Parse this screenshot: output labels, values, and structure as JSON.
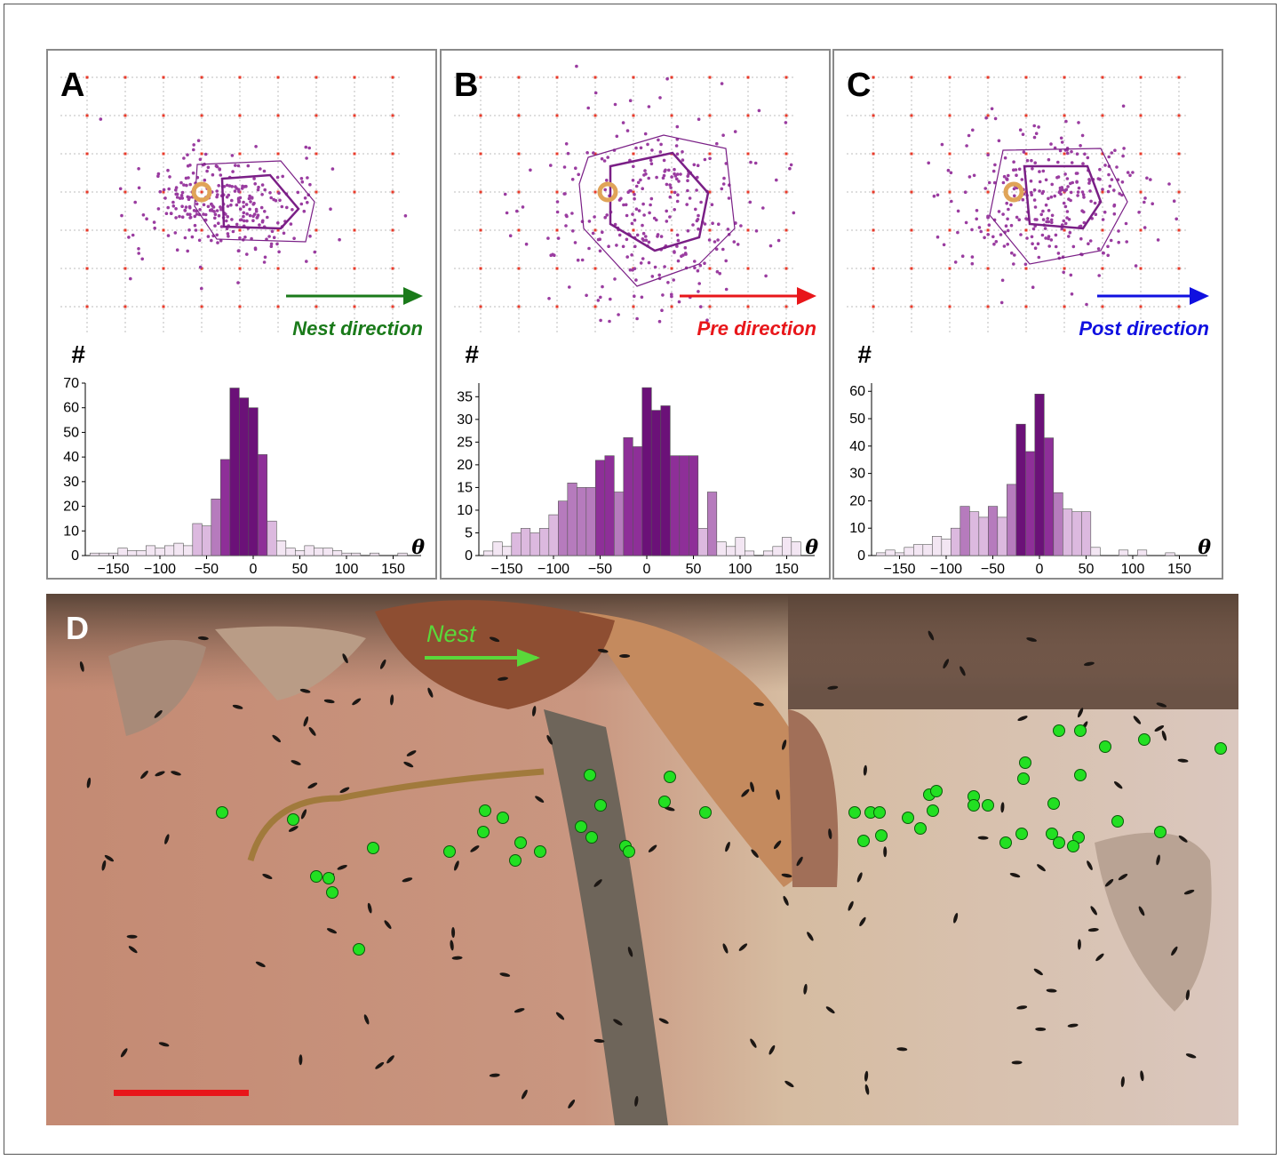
{
  "figure": {
    "panels": [
      {
        "letter": "A",
        "direction_label": "Nest direction",
        "direction_color": "#1a7a1a"
      },
      {
        "letter": "B",
        "direction_label": "Pre direction",
        "direction_color": "#e8161a"
      },
      {
        "letter": "C",
        "direction_label": "Post direction",
        "direction_color": "#1010e0"
      }
    ],
    "histogram_axis_symbol": "#",
    "theta_symbol": "θ",
    "photo": {
      "letter": "D",
      "nest_label": "Nest",
      "nest_color": "#5ad83a",
      "scale_bar_color": "#e8161a",
      "dot_color": "#22e022"
    }
  },
  "chart_data": [
    {
      "type": "bar",
      "panel": "A",
      "ylabel": "#",
      "xlabel": "θ",
      "xlim": [
        -180,
        180
      ],
      "ylim": [
        0,
        70
      ],
      "xticks": [
        -150,
        -100,
        -50,
        0,
        50,
        100,
        150
      ],
      "yticks": [
        0,
        10,
        20,
        30,
        40,
        50,
        60,
        70
      ],
      "bin_width": 10,
      "bin_starts": [
        -175,
        -165,
        -155,
        -145,
        -135,
        -125,
        -115,
        -105,
        -95,
        -85,
        -75,
        -65,
        -55,
        -45,
        -35,
        -25,
        -15,
        -5,
        5,
        15,
        25,
        35,
        45,
        55,
        65,
        75,
        85,
        95,
        105,
        115,
        125,
        135,
        145,
        155,
        165
      ],
      "values": [
        1,
        1,
        1,
        3,
        2,
        2,
        4,
        3,
        4,
        5,
        4,
        13,
        12,
        23,
        39,
        68,
        64,
        60,
        41,
        14,
        6,
        3,
        2,
        4,
        3,
        3,
        2,
        1,
        1,
        0,
        1,
        0,
        0,
        1,
        0
      ]
    },
    {
      "type": "bar",
      "panel": "B",
      "ylabel": "#",
      "xlabel": "θ",
      "xlim": [
        -180,
        180
      ],
      "ylim": [
        0,
        38
      ],
      "xticks": [
        -150,
        -100,
        -50,
        0,
        50,
        100,
        150
      ],
      "yticks": [
        0,
        5,
        10,
        15,
        20,
        25,
        30,
        35
      ],
      "bin_width": 10,
      "bin_starts": [
        -175,
        -165,
        -155,
        -145,
        -135,
        -125,
        -115,
        -105,
        -95,
        -85,
        -75,
        -65,
        -55,
        -45,
        -35,
        -25,
        -15,
        -5,
        5,
        15,
        25,
        35,
        45,
        55,
        65,
        75,
        85,
        95,
        105,
        115,
        125,
        135,
        145,
        155,
        165
      ],
      "values": [
        1,
        3,
        2,
        5,
        6,
        5,
        6,
        9,
        12,
        16,
        15,
        15,
        21,
        22,
        14,
        26,
        24,
        37,
        32,
        33,
        22,
        22,
        22,
        6,
        14,
        3,
        2,
        4,
        1,
        0,
        1,
        2,
        4,
        3,
        0
      ]
    },
    {
      "type": "bar",
      "panel": "C",
      "ylabel": "#",
      "xlabel": "θ",
      "xlim": [
        -180,
        180
      ],
      "ylim": [
        0,
        63
      ],
      "xticks": [
        -150,
        -100,
        -50,
        0,
        50,
        100,
        150
      ],
      "yticks": [
        0,
        10,
        20,
        30,
        40,
        50,
        60
      ],
      "bin_width": 10,
      "bin_starts": [
        -175,
        -165,
        -155,
        -145,
        -135,
        -125,
        -115,
        -105,
        -95,
        -85,
        -75,
        -65,
        -55,
        -45,
        -35,
        -25,
        -15,
        -5,
        5,
        15,
        25,
        35,
        45,
        55,
        65,
        75,
        85,
        95,
        105,
        115,
        125,
        135,
        145,
        155,
        165
      ],
      "values": [
        1,
        2,
        1,
        3,
        4,
        4,
        7,
        6,
        10,
        18,
        16,
        14,
        18,
        14,
        26,
        48,
        38,
        59,
        43,
        23,
        17,
        16,
        16,
        3,
        0,
        0,
        2,
        0,
        2,
        0,
        0,
        1,
        0,
        0,
        0
      ]
    }
  ]
}
